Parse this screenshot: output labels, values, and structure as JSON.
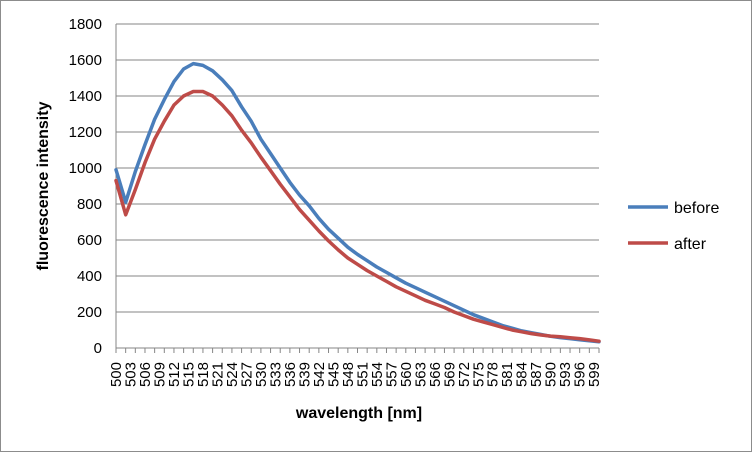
{
  "chart_data": {
    "type": "line",
    "title": "",
    "xlabel": "wavelength [nm]",
    "ylabel": "fluorescence intensity",
    "ylim": [
      0,
      1800
    ],
    "yticks": [
      "0",
      "200",
      "400",
      "600",
      "800",
      "1000",
      "1200",
      "1400",
      "1600",
      "1800"
    ],
    "xlim": [
      500,
      600
    ],
    "xticks": [
      "500",
      "503",
      "506",
      "509",
      "512",
      "515",
      "518",
      "521",
      "524",
      "527",
      "530",
      "533",
      "536",
      "539",
      "542",
      "545",
      "548",
      "551",
      "554",
      "557",
      "560",
      "563",
      "566",
      "569",
      "572",
      "575",
      "578",
      "581",
      "584",
      "587",
      "590",
      "593",
      "596",
      "599"
    ],
    "grid": "horizontal",
    "legend_position": "right",
    "x": [
      500,
      502,
      504,
      506,
      508,
      510,
      512,
      514,
      516,
      518,
      520,
      522,
      524,
      526,
      528,
      530,
      532,
      534,
      536,
      538,
      540,
      542,
      544,
      546,
      548,
      550,
      552,
      554,
      556,
      558,
      560,
      562,
      564,
      566,
      568,
      570,
      572,
      574,
      576,
      578,
      580,
      582,
      584,
      586,
      588,
      590,
      592,
      594,
      596,
      598,
      600
    ],
    "series": [
      {
        "name": "before",
        "color": "#4a7ebb",
        "values": [
          990,
          810,
          980,
          1130,
          1270,
          1380,
          1480,
          1550,
          1580,
          1570,
          1540,
          1490,
          1430,
          1340,
          1260,
          1160,
          1080,
          1000,
          920,
          850,
          790,
          720,
          660,
          610,
          560,
          520,
          485,
          450,
          420,
          390,
          360,
          335,
          310,
          285,
          260,
          235,
          210,
          185,
          165,
          145,
          125,
          110,
          95,
          85,
          75,
          65,
          58,
          52,
          46,
          40,
          35
        ]
      },
      {
        "name": "after",
        "color": "#be4b48",
        "values": [
          930,
          740,
          880,
          1030,
          1160,
          1260,
          1350,
          1400,
          1425,
          1425,
          1400,
          1350,
          1290,
          1210,
          1140,
          1060,
          985,
          910,
          840,
          770,
          710,
          650,
          595,
          545,
          500,
          465,
          430,
          400,
          370,
          340,
          315,
          290,
          265,
          245,
          225,
          200,
          180,
          160,
          145,
          130,
          115,
          100,
          90,
          80,
          72,
          66,
          62,
          57,
          52,
          45,
          38
        ]
      }
    ]
  }
}
